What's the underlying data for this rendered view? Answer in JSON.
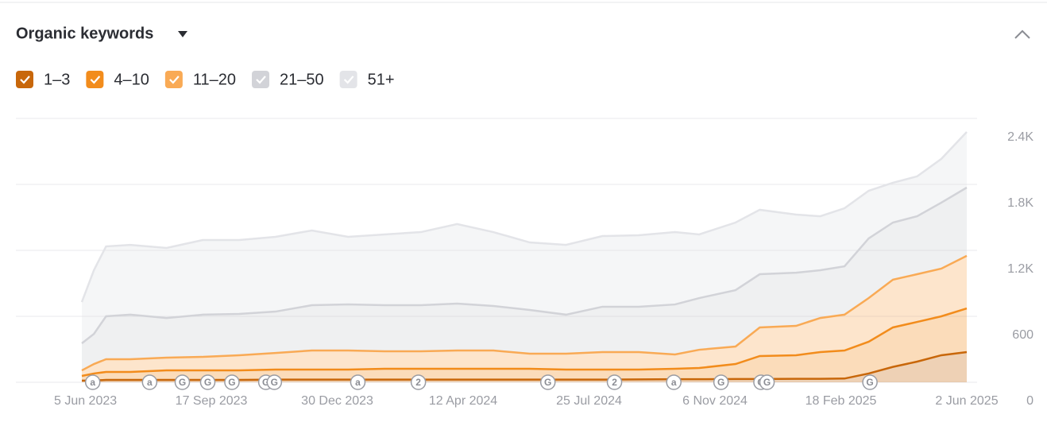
{
  "chart_data": {
    "type": "stacked-area",
    "title": "Organic keywords",
    "x": [
      "2023-06-02",
      "2023-06-12",
      "2023-06-22",
      "2023-07-12",
      "2023-08-11",
      "2023-09-10",
      "2023-10-10",
      "2023-11-09",
      "2023-12-09",
      "2024-01-08",
      "2024-02-07",
      "2024-03-08",
      "2024-04-07",
      "2024-05-07",
      "2024-06-06",
      "2024-07-06",
      "2024-08-05",
      "2024-09-04",
      "2024-10-04",
      "2024-10-24",
      "2024-11-23",
      "2024-12-13",
      "2025-01-12",
      "2025-02-01",
      "2025-02-21",
      "2025-03-13",
      "2025-04-02",
      "2025-04-22",
      "2025-05-12",
      "2025-06-02"
    ],
    "series": [
      {
        "name": "1–3",
        "color": "#c8670a",
        "values": [
          15,
          15,
          22,
          22,
          22,
          22,
          22,
          24,
          24,
          24,
          24,
          24,
          24,
          24,
          24,
          24,
          24,
          26,
          28,
          28,
          30,
          30,
          32,
          32,
          34,
          80,
          140,
          188,
          246,
          275
        ]
      },
      {
        "name": "4–10",
        "color": "#f28c1c",
        "values": [
          43,
          65,
          72,
          72,
          86,
          86,
          86,
          92,
          92,
          92,
          99,
          99,
          99,
          99,
          99,
          92,
          92,
          90,
          95,
          102,
          136,
          209,
          214,
          243,
          255,
          289,
          359,
          361,
          354,
          397
        ]
      },
      {
        "name": "11–20",
        "color": "#f9aa55",
        "values": [
          50,
          86,
          116,
          116,
          116,
          123,
          138,
          151,
          173,
          173,
          159,
          159,
          166,
          166,
          137,
          144,
          159,
          159,
          130,
          166,
          159,
          260,
          267,
          310,
          326,
          397,
          434,
          434,
          434,
          478
        ]
      },
      {
        "name": "21–50",
        "color": "#d2d3d8",
        "values": [
          246,
          274,
          390,
          405,
          361,
          384,
          376,
          376,
          412,
          419,
          419,
          419,
          427,
          405,
          398,
          355,
          412,
          412,
          455,
          470,
          513,
          484,
          484,
          434,
          440,
          543,
          520,
          527,
          600,
          621
        ]
      },
      {
        "name": "51+",
        "color": "#e3e4e8",
        "values": [
          376,
          580,
          636,
          635,
          637,
          679,
          672,
          680,
          680,
          615,
          644,
          665,
          723,
          672,
          614,
          635,
          643,
          650,
          658,
          579,
          615,
          586,
          528,
          491,
          528,
          433,
          362,
          363,
          398,
          506
        ]
      }
    ],
    "xlim": [
      "2023-06-02",
      "2025-06-02"
    ],
    "xticks": [
      {
        "value": "2023-06-05",
        "label": "5 Jun 2023"
      },
      {
        "value": "2023-09-17",
        "label": "17 Sep 2023"
      },
      {
        "value": "2023-12-30",
        "label": "30 Dec 2023"
      },
      {
        "value": "2024-04-12",
        "label": "12 Apr 2024"
      },
      {
        "value": "2024-07-25",
        "label": "25 Jul 2024"
      },
      {
        "value": "2024-11-06",
        "label": "6 Nov 2024"
      },
      {
        "value": "2025-02-18",
        "label": "18 Feb 2025"
      },
      {
        "value": "2025-06-02",
        "label": "2 Jun 2025"
      }
    ],
    "ylim": [
      0,
      2400
    ],
    "yticks": [
      0,
      600,
      {
        "value": 1200,
        "label": "1.2K"
      },
      {
        "value": 1800,
        "label": "1.8K"
      },
      {
        "value": 2400,
        "label": "2.4K"
      }
    ],
    "grid": true,
    "annotations": [
      {
        "x": "2023-06-11",
        "label": "a"
      },
      {
        "x": "2023-07-28",
        "label": "a"
      },
      {
        "x": "2023-08-24",
        "label": "G"
      },
      {
        "x": "2023-09-14",
        "label": "G"
      },
      {
        "x": "2023-10-04",
        "label": "G"
      },
      {
        "x": "2023-11-01",
        "label": "G"
      },
      {
        "x": "2023-11-08",
        "label": "G"
      },
      {
        "x": "2024-01-16",
        "label": "a"
      },
      {
        "x": "2024-03-06",
        "label": "2"
      },
      {
        "x": "2024-06-21",
        "label": "G"
      },
      {
        "x": "2024-08-15",
        "label": "2"
      },
      {
        "x": "2024-10-03",
        "label": "a"
      },
      {
        "x": "2024-11-11",
        "label": "G"
      },
      {
        "x": "2024-12-14",
        "label": "G"
      },
      {
        "x": "2024-12-19",
        "label": "G"
      },
      {
        "x": "2025-03-14",
        "label": "G"
      }
    ]
  }
}
